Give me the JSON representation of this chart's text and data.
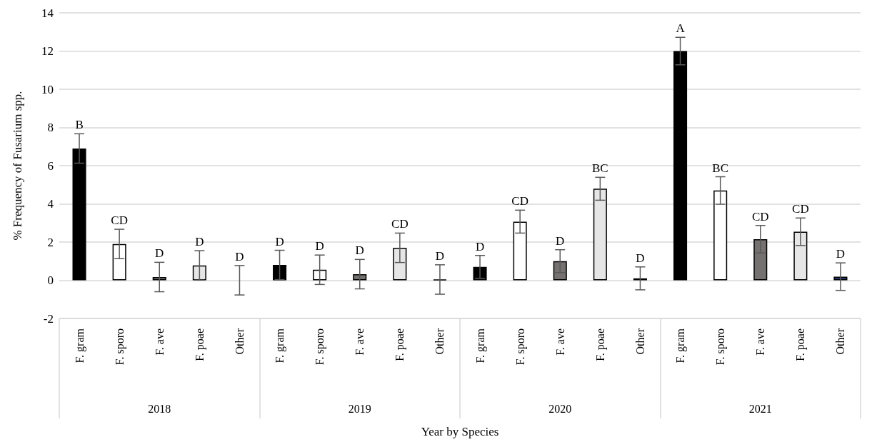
{
  "chart_data": {
    "type": "bar",
    "xlabel": "Year by Species",
    "ylabel": "% Frequency of Fusarium spp.",
    "categories": [
      "F. gram",
      "F. sporo",
      "F. ave",
      "F. poae",
      "Other",
      "F. gram",
      "F. sporo",
      "F. ave",
      "F. poae",
      "Other",
      "F. gram",
      "F. sporo",
      "F. ave",
      "F. poae",
      "Other",
      "F. gram",
      "F. sporo",
      "F. ave",
      "F. poae",
      "Other"
    ],
    "values": [
      6.9,
      1.9,
      0.17,
      0.78,
      0,
      0.8,
      0.55,
      0.32,
      1.7,
      0.04,
      0.7,
      3.07,
      1.0,
      4.79,
      0.1,
      12.0,
      4.7,
      2.15,
      2.54,
      0.19
    ],
    "colors": [
      "#000000",
      "#ffffff",
      "#767171",
      "#e7e6e6",
      "#ffffff",
      "#000000",
      "#ffffff",
      "#767171",
      "#e7e6e6",
      "#000000",
      "#000000",
      "#ffffff",
      "#767171",
      "#e7e6e6",
      "#1f2a44",
      "#000000",
      "#ffffff",
      "#767171",
      "#e7e6e6",
      "#1f3864"
    ],
    "errors": [
      0.77,
      0.77,
      0.77,
      0.77,
      0.77,
      0.77,
      0.77,
      0.77,
      0.77,
      0.77,
      0.6,
      0.6,
      0.6,
      0.6,
      0.6,
      0.72,
      0.72,
      0.72,
      0.72,
      0.72
    ],
    "value_labels": [
      "B",
      "CD",
      "D",
      "D",
      "D",
      "D",
      "D",
      "D",
      "CD",
      "D",
      "D",
      "CD",
      "D",
      "BC",
      "D",
      "A",
      "BC",
      "CD",
      "CD",
      "D"
    ],
    "annotations": [
      "2018",
      "2019",
      "2020",
      "2021"
    ],
    "ylim": [
      -2,
      14
    ],
    "yticks": [
      -2,
      0,
      2,
      4,
      6,
      8,
      10,
      12,
      14
    ],
    "grid": "y"
  }
}
